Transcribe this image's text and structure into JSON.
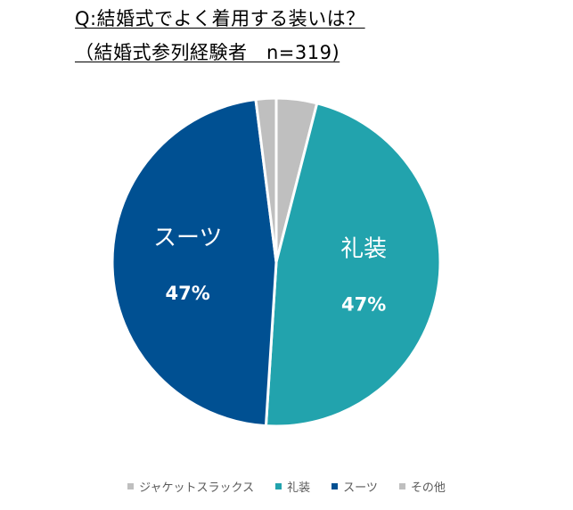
{
  "header": {
    "title_line1": "Q:結婚式でよく着用する装いは？",
    "title_line2": "（結婚式参列経験者　n=319)"
  },
  "chart_data": {
    "type": "pie",
    "title": "Q:結婚式でよく着用する装いは？（結婚式参列経験者　n=319)",
    "start_angle_deg": 0,
    "direction": "clockwise",
    "slices": [
      {
        "name": "ジャケットスラックス",
        "value": 4,
        "color": "#BFBFBF",
        "show_label": false
      },
      {
        "name": "礼装",
        "value": 47,
        "color": "#22A3AD",
        "show_label": true,
        "label_text": "礼装",
        "value_text": "47%"
      },
      {
        "name": "スーツ",
        "value": 47,
        "color": "#005092",
        "show_label": true,
        "label_text": "スーツ",
        "value_text": "47%"
      },
      {
        "name": "その他",
        "value": 2,
        "color": "#BFBFBF",
        "show_label": false
      }
    ],
    "legend_position": "bottom"
  },
  "legend": {
    "items": [
      {
        "label": "ジャケットスラックス",
        "color": "#BFBFBF"
      },
      {
        "label": "礼装",
        "color": "#22A3AD"
      },
      {
        "label": "スーツ",
        "color": "#005092"
      },
      {
        "label": "その他",
        "color": "#BFBFBF"
      }
    ]
  }
}
